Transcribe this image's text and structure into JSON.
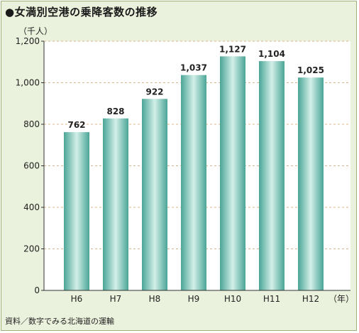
{
  "title": "●女満別空港の乗降客数の推移",
  "source": "資料／数字でみる北海道の運輸",
  "chart_data": {
    "type": "bar",
    "ylabel": "（千人）",
    "xunit": "（年）",
    "categories": [
      "H6",
      "H7",
      "H8",
      "H9",
      "H10",
      "H11",
      "H12"
    ],
    "values": [
      762,
      828,
      922,
      1037,
      1127,
      1104,
      1025
    ],
    "value_labels": [
      "762",
      "828",
      "922",
      "1,037",
      "1,127",
      "1,104",
      "1,025"
    ],
    "yticks": [
      0,
      200,
      400,
      600,
      800,
      1000,
      1200
    ],
    "ytick_labels": [
      "0",
      "200",
      "400",
      "600",
      "800",
      "1,000",
      "1,200"
    ],
    "ylim": [
      0,
      1200
    ],
    "grid": true,
    "colors": {
      "plot_bg": "#ffffff",
      "frame_bg": "#eaf1dc",
      "bar_dark": "#4aa596",
      "bar_light": "#d2efe8",
      "grid": "#d9b48a"
    }
  }
}
